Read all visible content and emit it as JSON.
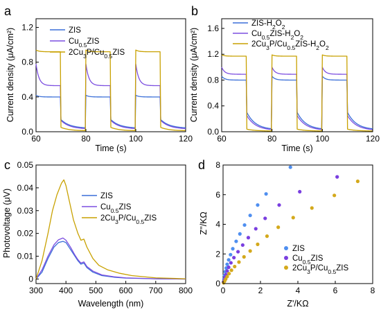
{
  "chart_data": [
    {
      "panel": "a",
      "type": "line",
      "xlabel": "Time (s)",
      "ylabel": "Current density (μA/cm²)",
      "xlim": [
        60,
        120
      ],
      "ylim": [
        0,
        1.3
      ],
      "xticks": [
        60,
        80,
        100,
        120
      ],
      "yticks": [
        0.0,
        0.4,
        0.8,
        1.2
      ],
      "light_on_intervals": [
        [
          60,
          70
        ],
        [
          80,
          90
        ],
        [
          100,
          110
        ]
      ],
      "legend_position": "top-left",
      "series": [
        {
          "name": "ZIS",
          "color": "#3a6fd8",
          "on_peak": 0.42,
          "on_plateau": 0.4,
          "dark_start": 0.14,
          "dark_end": 0.04
        },
        {
          "name": "Cu0.5ZIS",
          "color": "#7c4ee0",
          "on_peak": 0.78,
          "on_plateau": 0.53,
          "dark_start": 0.13,
          "dark_end": 0.03
        },
        {
          "name": "2Cu3P/Cu0.5ZIS",
          "color": "#c8a100",
          "on_peak": 0.94,
          "on_plateau": 0.92,
          "dark_start": 0.05,
          "dark_end": 0.01
        }
      ]
    },
    {
      "panel": "b",
      "type": "line",
      "xlabel": "Time (s)",
      "ylabel": "Current density (μA/cm²)",
      "xlim": [
        60,
        120
      ],
      "ylim": [
        0,
        1.75
      ],
      "xticks": [
        60,
        80,
        100,
        120
      ],
      "yticks": [
        0.0,
        0.4,
        0.8,
        1.2,
        1.6
      ],
      "light_on_intervals": [
        [
          60,
          70
        ],
        [
          80,
          90
        ],
        [
          100,
          110
        ]
      ],
      "legend_position": "top-left",
      "series": [
        {
          "name": "ZIS-H2O2",
          "color": "#3a6fd8",
          "on_peak": 0.86,
          "on_plateau": 0.8,
          "dark_start": 0.3,
          "dark_end": 0.03
        },
        {
          "name": "Cu0.5ZIS-H2O2",
          "color": "#7c4ee0",
          "on_peak": 1.0,
          "on_plateau": 0.89,
          "dark_start": 0.25,
          "dark_end": 0.02
        },
        {
          "name": "2Cu3P/Cu0.5ZIS-H2O2",
          "color": "#c8a100",
          "on_peak": 1.19,
          "on_plateau": 1.17,
          "dark_start": 0.04,
          "dark_end": 0.01
        }
      ]
    },
    {
      "panel": "c",
      "type": "line",
      "xlabel": "Wavelength (nm)",
      "ylabel": "Photovoltage (μV)",
      "xlim": [
        300,
        800
      ],
      "ylim": [
        -0.002,
        0.05
      ],
      "xticks": [
        300,
        400,
        500,
        600,
        700,
        800
      ],
      "yticks": [
        0.0,
        0.01,
        0.02,
        0.03,
        0.04,
        0.05
      ],
      "legend_position": "top-right",
      "series": [
        {
          "name": "ZIS",
          "color": "#3a6fd8",
          "points": [
            [
              300,
              0.0
            ],
            [
              320,
              0.003
            ],
            [
              340,
              0.009
            ],
            [
              360,
              0.014
            ],
            [
              375,
              0.016
            ],
            [
              390,
              0.0165
            ],
            [
              400,
              0.016
            ],
            [
              415,
              0.013
            ],
            [
              430,
              0.01
            ],
            [
              440,
              0.008
            ],
            [
              450,
              0.0065
            ],
            [
              460,
              0.007
            ],
            [
              470,
              0.005
            ],
            [
              490,
              0.003
            ],
            [
              520,
              0.0015
            ],
            [
              560,
              0.0008
            ],
            [
              600,
              0.0004
            ],
            [
              700,
              0.0001
            ],
            [
              800,
              0.0
            ]
          ]
        },
        {
          "name": "Cu0.5ZIS",
          "color": "#7c4ee0",
          "points": [
            [
              300,
              0.0
            ],
            [
              320,
              0.004
            ],
            [
              340,
              0.01
            ],
            [
              360,
              0.015
            ],
            [
              375,
              0.0172
            ],
            [
              390,
              0.018
            ],
            [
              400,
              0.017
            ],
            [
              415,
              0.014
            ],
            [
              430,
              0.0105
            ],
            [
              440,
              0.0085
            ],
            [
              450,
              0.007
            ],
            [
              460,
              0.0075
            ],
            [
              470,
              0.0055
            ],
            [
              490,
              0.0035
            ],
            [
              520,
              0.0018
            ],
            [
              560,
              0.001
            ],
            [
              600,
              0.0005
            ],
            [
              700,
              0.0001
            ],
            [
              800,
              0.0
            ]
          ]
        },
        {
          "name": "2Cu3P/Cu0.5ZIS",
          "color": "#c8a100",
          "points": [
            [
              300,
              0.0
            ],
            [
              320,
              0.008
            ],
            [
              340,
              0.02
            ],
            [
              355,
              0.03
            ],
            [
              370,
              0.037
            ],
            [
              385,
              0.042
            ],
            [
              393,
              0.0435
            ],
            [
              400,
              0.041
            ],
            [
              410,
              0.035
            ],
            [
              425,
              0.026
            ],
            [
              440,
              0.02
            ],
            [
              450,
              0.017
            ],
            [
              460,
              0.0175
            ],
            [
              470,
              0.014
            ],
            [
              490,
              0.009
            ],
            [
              510,
              0.006
            ],
            [
              540,
              0.004
            ],
            [
              580,
              0.0025
            ],
            [
              620,
              0.0015
            ],
            [
              700,
              0.0005
            ],
            [
              800,
              0.0001
            ]
          ]
        }
      ]
    },
    {
      "panel": "d",
      "type": "scatter",
      "xlabel": "Z'/KΩ",
      "ylabel": "Z''/KΩ",
      "xlim": [
        0,
        8
      ],
      "ylim": [
        0,
        8
      ],
      "xticks": [
        0,
        2,
        4,
        6,
        8
      ],
      "yticks": [
        0,
        2,
        4,
        6,
        8
      ],
      "legend_position": "bottom-right",
      "series": [
        {
          "name": "ZIS",
          "color": "#4f8ff0",
          "points": [
            [
              0.02,
              0.1
            ],
            [
              0.05,
              0.3
            ],
            [
              0.08,
              0.55
            ],
            [
              0.12,
              0.8
            ],
            [
              0.17,
              1.05
            ],
            [
              0.22,
              1.3
            ],
            [
              0.3,
              1.6
            ],
            [
              0.4,
              1.95
            ],
            [
              0.52,
              2.35
            ],
            [
              0.7,
              2.85
            ],
            [
              0.9,
              3.35
            ],
            [
              1.15,
              3.95
            ],
            [
              1.45,
              4.6
            ],
            [
              1.85,
              5.3
            ],
            [
              2.3,
              6.05
            ],
            [
              3.6,
              7.85
            ]
          ]
        },
        {
          "name": "Cu0.5ZIS",
          "color": "#7a3fe0",
          "points": [
            [
              0.02,
              0.08
            ],
            [
              0.06,
              0.22
            ],
            [
              0.1,
              0.4
            ],
            [
              0.15,
              0.6
            ],
            [
              0.22,
              0.85
            ],
            [
              0.3,
              1.1
            ],
            [
              0.42,
              1.4
            ],
            [
              0.58,
              1.75
            ],
            [
              0.8,
              2.15
            ],
            [
              1.05,
              2.6
            ],
            [
              1.35,
              3.1
            ],
            [
              1.75,
              3.7
            ],
            [
              2.25,
              4.4
            ],
            [
              3.0,
              5.3
            ],
            [
              4.1,
              6.2
            ],
            [
              6.1,
              7.2
            ]
          ]
        },
        {
          "name": "2Cu3P/Cu0.5ZIS",
          "color": "#d4a91c",
          "points": [
            [
              0.03,
              0.05
            ],
            [
              0.08,
              0.16
            ],
            [
              0.14,
              0.3
            ],
            [
              0.22,
              0.47
            ],
            [
              0.32,
              0.67
            ],
            [
              0.45,
              0.9
            ],
            [
              0.62,
              1.15
            ],
            [
              0.85,
              1.45
            ],
            [
              1.12,
              1.8
            ],
            [
              1.45,
              2.2
            ],
            [
              1.85,
              2.65
            ],
            [
              2.35,
              3.2
            ],
            [
              2.95,
              3.8
            ],
            [
              3.75,
              4.45
            ],
            [
              4.75,
              5.1
            ],
            [
              5.95,
              5.95
            ],
            [
              7.2,
              6.9
            ]
          ]
        }
      ]
    }
  ]
}
